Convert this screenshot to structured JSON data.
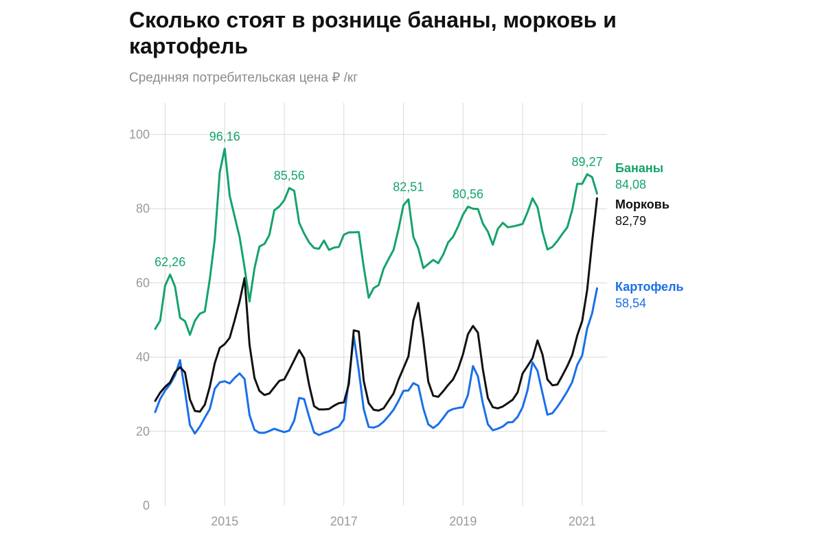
{
  "title": "Сколько стоят в рознице бананы, морковь и картофель",
  "subtitle": "Среднняя потребительская цена ₽ /кг",
  "colors": {
    "bananas": "#14a36a",
    "carrots": "#111111",
    "potatoes": "#1a6fe8",
    "grid": "#d9d9d9",
    "tick": "#9a9a9a"
  },
  "chart_data": {
    "type": "line",
    "title": "Сколько стоят в рознице бананы, морковь и картофель",
    "subtitle": "Среднняя потребительская цена ₽ /кг",
    "ylim": [
      0,
      100
    ],
    "yticks": [
      "0",
      "20",
      "40",
      "60",
      "80",
      "100"
    ],
    "xlim": [
      "2013-11",
      "2021-06"
    ],
    "xticks": [
      {
        "label": "2015",
        "x": "2015-01"
      },
      {
        "label": "2017",
        "x": "2017-01"
      },
      {
        "label": "2019",
        "x": "2019-01"
      },
      {
        "label": "2021",
        "x": "2021-01"
      }
    ],
    "grid": "vertical every year, horizontal every 20",
    "series": [
      {
        "name": "Бананы",
        "last_value_label": "84,08",
        "points": [
          [
            "2013-11",
            47.6
          ],
          [
            "2013-12",
            49.8
          ],
          [
            "2014-01",
            59.3
          ],
          [
            "2014-02",
            62.26
          ],
          [
            "2014-03",
            59.0
          ],
          [
            "2014-04",
            50.6
          ],
          [
            "2014-05",
            49.7
          ],
          [
            "2014-06",
            46.0
          ],
          [
            "2014-07",
            49.8
          ],
          [
            "2014-08",
            51.7
          ],
          [
            "2014-09",
            52.3
          ],
          [
            "2014-10",
            61.0
          ],
          [
            "2014-11",
            71.8
          ],
          [
            "2014-12",
            89.8
          ],
          [
            "2015-01",
            96.16
          ],
          [
            "2015-02",
            83.5
          ],
          [
            "2015-03",
            77.9
          ],
          [
            "2015-04",
            72.4
          ],
          [
            "2015-05",
            64.1
          ],
          [
            "2015-06",
            55.0
          ],
          [
            "2015-07",
            63.9
          ],
          [
            "2015-08",
            69.8
          ],
          [
            "2015-09",
            70.5
          ],
          [
            "2015-10",
            72.9
          ],
          [
            "2015-11",
            79.6
          ],
          [
            "2015-12",
            80.6
          ],
          [
            "2016-01",
            82.3
          ],
          [
            "2016-02",
            85.56
          ],
          [
            "2016-03",
            84.8
          ],
          [
            "2016-04",
            76.2
          ],
          [
            "2016-05",
            73.3
          ],
          [
            "2016-06",
            70.9
          ],
          [
            "2016-07",
            69.4
          ],
          [
            "2016-08",
            69.2
          ],
          [
            "2016-09",
            71.4
          ],
          [
            "2016-10",
            68.9
          ],
          [
            "2016-11",
            69.5
          ],
          [
            "2016-12",
            69.7
          ],
          [
            "2017-01",
            73.0
          ],
          [
            "2017-02",
            73.6
          ],
          [
            "2017-03",
            73.6
          ],
          [
            "2017-04",
            73.7
          ],
          [
            "2017-05",
            64.3
          ],
          [
            "2017-06",
            56.0
          ],
          [
            "2017-07",
            58.6
          ],
          [
            "2017-08",
            59.4
          ],
          [
            "2017-09",
            63.8
          ],
          [
            "2017-10",
            66.4
          ],
          [
            "2017-11",
            68.9
          ],
          [
            "2017-12",
            74.4
          ],
          [
            "2018-01",
            80.9
          ],
          [
            "2018-02",
            82.51
          ],
          [
            "2018-03",
            72.4
          ],
          [
            "2018-04",
            69.3
          ],
          [
            "2018-05",
            64.0
          ],
          [
            "2018-06",
            65.1
          ],
          [
            "2018-07",
            66.2
          ],
          [
            "2018-08",
            65.3
          ],
          [
            "2018-09",
            67.6
          ],
          [
            "2018-10",
            70.9
          ],
          [
            "2018-11",
            72.4
          ],
          [
            "2018-12",
            75.2
          ],
          [
            "2019-01",
            78.4
          ],
          [
            "2019-02",
            80.56
          ],
          [
            "2019-03",
            80.0
          ],
          [
            "2019-04",
            79.9
          ],
          [
            "2019-05",
            76.0
          ],
          [
            "2019-06",
            73.8
          ],
          [
            "2019-07",
            70.3
          ],
          [
            "2019-08",
            74.5
          ],
          [
            "2019-09",
            76.2
          ],
          [
            "2019-10",
            75.0
          ],
          [
            "2019-11",
            75.2
          ],
          [
            "2019-12",
            75.5
          ],
          [
            "2020-01",
            75.9
          ],
          [
            "2020-02",
            79.1
          ],
          [
            "2020-03",
            82.8
          ],
          [
            "2020-04",
            80.4
          ],
          [
            "2020-05",
            73.8
          ],
          [
            "2020-06",
            69.0
          ],
          [
            "2020-07",
            69.7
          ],
          [
            "2020-08",
            71.3
          ],
          [
            "2020-09",
            73.2
          ],
          [
            "2020-10",
            75.0
          ],
          [
            "2020-11",
            79.7
          ],
          [
            "2020-12",
            86.7
          ],
          [
            "2021-01",
            86.7
          ],
          [
            "2021-02",
            89.27
          ],
          [
            "2021-03",
            88.5
          ],
          [
            "2021-04",
            84.08
          ]
        ],
        "annotations": [
          {
            "x": "2014-02",
            "y": 62.26,
            "text": "62,26"
          },
          {
            "x": "2015-01",
            "y": 96.16,
            "text": "96,16"
          },
          {
            "x": "2016-02",
            "y": 85.56,
            "text": "85,56"
          },
          {
            "x": "2018-02",
            "y": 82.51,
            "text": "82,51"
          },
          {
            "x": "2019-02",
            "y": 80.56,
            "text": "80,56"
          },
          {
            "x": "2021-02",
            "y": 89.27,
            "text": "89,27"
          }
        ]
      },
      {
        "name": "Морковь",
        "last_value_label": "82,79",
        "points": [
          [
            "2013-11",
            28.2
          ],
          [
            "2013-12",
            30.4
          ],
          [
            "2014-01",
            32.0
          ],
          [
            "2014-02",
            33.2
          ],
          [
            "2014-03",
            35.9
          ],
          [
            "2014-04",
            37.3
          ],
          [
            "2014-05",
            35.9
          ],
          [
            "2014-06",
            28.6
          ],
          [
            "2014-07",
            25.5
          ],
          [
            "2014-08",
            25.3
          ],
          [
            "2014-09",
            27.2
          ],
          [
            "2014-10",
            32.0
          ],
          [
            "2014-11",
            38.4
          ],
          [
            "2014-12",
            42.5
          ],
          [
            "2015-01",
            43.5
          ],
          [
            "2015-02",
            45.2
          ],
          [
            "2015-03",
            49.9
          ],
          [
            "2015-04",
            55.0
          ],
          [
            "2015-05",
            61.3
          ],
          [
            "2015-06",
            43.3
          ],
          [
            "2015-07",
            34.4
          ],
          [
            "2015-08",
            30.9
          ],
          [
            "2015-09",
            29.8
          ],
          [
            "2015-10",
            30.2
          ],
          [
            "2015-11",
            31.9
          ],
          [
            "2015-12",
            33.6
          ],
          [
            "2016-01",
            34.0
          ],
          [
            "2016-02",
            36.5
          ],
          [
            "2016-03",
            39.2
          ],
          [
            "2016-04",
            41.9
          ],
          [
            "2016-05",
            39.7
          ],
          [
            "2016-06",
            32.5
          ],
          [
            "2016-07",
            26.8
          ],
          [
            "2016-08",
            25.9
          ],
          [
            "2016-09",
            25.9
          ],
          [
            "2016-10",
            26.0
          ],
          [
            "2016-11",
            26.9
          ],
          [
            "2016-12",
            27.6
          ],
          [
            "2017-01",
            27.8
          ],
          [
            "2017-02",
            32.7
          ],
          [
            "2017-03",
            47.2
          ],
          [
            "2017-04",
            46.9
          ],
          [
            "2017-05",
            33.6
          ],
          [
            "2017-06",
            27.6
          ],
          [
            "2017-07",
            25.8
          ],
          [
            "2017-08",
            25.6
          ],
          [
            "2017-09",
            26.2
          ],
          [
            "2017-10",
            28.2
          ],
          [
            "2017-11",
            30.2
          ],
          [
            "2017-12",
            33.9
          ],
          [
            "2018-01",
            37.0
          ],
          [
            "2018-02",
            40.2
          ],
          [
            "2018-03",
            49.9
          ],
          [
            "2018-04",
            54.6
          ],
          [
            "2018-05",
            44.6
          ],
          [
            "2018-06",
            33.4
          ],
          [
            "2018-07",
            29.6
          ],
          [
            "2018-08",
            29.3
          ],
          [
            "2018-09",
            30.8
          ],
          [
            "2018-10",
            32.5
          ],
          [
            "2018-11",
            34.0
          ],
          [
            "2018-12",
            36.8
          ],
          [
            "2019-01",
            40.8
          ],
          [
            "2019-02",
            46.2
          ],
          [
            "2019-03",
            48.4
          ],
          [
            "2019-04",
            46.6
          ],
          [
            "2019-05",
            36.7
          ],
          [
            "2019-06",
            29.0
          ],
          [
            "2019-07",
            26.5
          ],
          [
            "2019-08",
            26.2
          ],
          [
            "2019-09",
            26.7
          ],
          [
            "2019-10",
            27.6
          ],
          [
            "2019-11",
            28.5
          ],
          [
            "2019-12",
            30.5
          ],
          [
            "2020-01",
            35.6
          ],
          [
            "2020-02",
            37.6
          ],
          [
            "2020-03",
            39.7
          ],
          [
            "2020-04",
            44.5
          ],
          [
            "2020-05",
            40.7
          ],
          [
            "2020-06",
            34.0
          ],
          [
            "2020-07",
            32.4
          ],
          [
            "2020-08",
            32.6
          ],
          [
            "2020-09",
            35.0
          ],
          [
            "2020-10",
            37.6
          ],
          [
            "2020-11",
            40.6
          ],
          [
            "2020-12",
            45.8
          ],
          [
            "2021-01",
            49.7
          ],
          [
            "2021-02",
            58.1
          ],
          [
            "2021-03",
            71.0
          ],
          [
            "2021-04",
            82.79
          ]
        ],
        "annotations": []
      },
      {
        "name": "Картофель",
        "last_value_label": "58,54",
        "points": [
          [
            "2013-11",
            25.2
          ],
          [
            "2013-12",
            28.7
          ],
          [
            "2014-01",
            31.0
          ],
          [
            "2014-02",
            32.7
          ],
          [
            "2014-03",
            35.1
          ],
          [
            "2014-04",
            39.2
          ],
          [
            "2014-05",
            30.8
          ],
          [
            "2014-06",
            21.7
          ],
          [
            "2014-07",
            19.4
          ],
          [
            "2014-08",
            21.3
          ],
          [
            "2014-09",
            23.7
          ],
          [
            "2014-10",
            26.0
          ],
          [
            "2014-11",
            31.5
          ],
          [
            "2014-12",
            33.2
          ],
          [
            "2015-01",
            33.5
          ],
          [
            "2015-02",
            32.9
          ],
          [
            "2015-03",
            34.4
          ],
          [
            "2015-04",
            35.6
          ],
          [
            "2015-05",
            34.1
          ],
          [
            "2015-06",
            24.4
          ],
          [
            "2015-07",
            20.4
          ],
          [
            "2015-08",
            19.6
          ],
          [
            "2015-09",
            19.6
          ],
          [
            "2015-10",
            20.1
          ],
          [
            "2015-11",
            20.7
          ],
          [
            "2015-12",
            20.2
          ],
          [
            "2016-01",
            19.8
          ],
          [
            "2016-02",
            20.2
          ],
          [
            "2016-03",
            22.9
          ],
          [
            "2016-04",
            29.0
          ],
          [
            "2016-05",
            28.7
          ],
          [
            "2016-06",
            23.9
          ],
          [
            "2016-07",
            19.7
          ],
          [
            "2016-08",
            19.0
          ],
          [
            "2016-09",
            19.6
          ],
          [
            "2016-10",
            20.0
          ],
          [
            "2016-11",
            20.7
          ],
          [
            "2016-12",
            21.3
          ],
          [
            "2017-01",
            23.2
          ],
          [
            "2017-02",
            33.8
          ],
          [
            "2017-03",
            45.6
          ],
          [
            "2017-04",
            36.4
          ],
          [
            "2017-05",
            26.0
          ],
          [
            "2017-06",
            21.2
          ],
          [
            "2017-07",
            21.0
          ],
          [
            "2017-08",
            21.5
          ],
          [
            "2017-09",
            22.6
          ],
          [
            "2017-10",
            24.1
          ],
          [
            "2017-11",
            25.8
          ],
          [
            "2017-12",
            28.2
          ],
          [
            "2018-01",
            30.9
          ],
          [
            "2018-02",
            31.0
          ],
          [
            "2018-03",
            33.0
          ],
          [
            "2018-04",
            32.3
          ],
          [
            "2018-05",
            26.2
          ],
          [
            "2018-06",
            21.9
          ],
          [
            "2018-07",
            20.9
          ],
          [
            "2018-08",
            21.9
          ],
          [
            "2018-09",
            23.6
          ],
          [
            "2018-10",
            25.4
          ],
          [
            "2018-11",
            26.0
          ],
          [
            "2018-12",
            26.3
          ],
          [
            "2019-01",
            26.5
          ],
          [
            "2019-02",
            29.8
          ],
          [
            "2019-03",
            37.6
          ],
          [
            "2019-04",
            34.8
          ],
          [
            "2019-05",
            27.5
          ],
          [
            "2019-06",
            21.9
          ],
          [
            "2019-07",
            20.3
          ],
          [
            "2019-08",
            20.7
          ],
          [
            "2019-09",
            21.3
          ],
          [
            "2019-10",
            22.4
          ],
          [
            "2019-11",
            22.5
          ],
          [
            "2019-12",
            23.9
          ],
          [
            "2020-01",
            26.5
          ],
          [
            "2020-02",
            31.1
          ],
          [
            "2020-03",
            38.6
          ],
          [
            "2020-04",
            36.3
          ],
          [
            "2020-05",
            30.3
          ],
          [
            "2020-06",
            24.5
          ],
          [
            "2020-07",
            24.9
          ],
          [
            "2020-08",
            26.6
          ],
          [
            "2020-09",
            28.6
          ],
          [
            "2020-10",
            30.8
          ],
          [
            "2020-11",
            33.3
          ],
          [
            "2020-12",
            37.9
          ],
          [
            "2021-01",
            40.4
          ],
          [
            "2021-02",
            47.7
          ],
          [
            "2021-03",
            51.8
          ],
          [
            "2021-04",
            58.54
          ]
        ],
        "annotations": []
      }
    ]
  }
}
